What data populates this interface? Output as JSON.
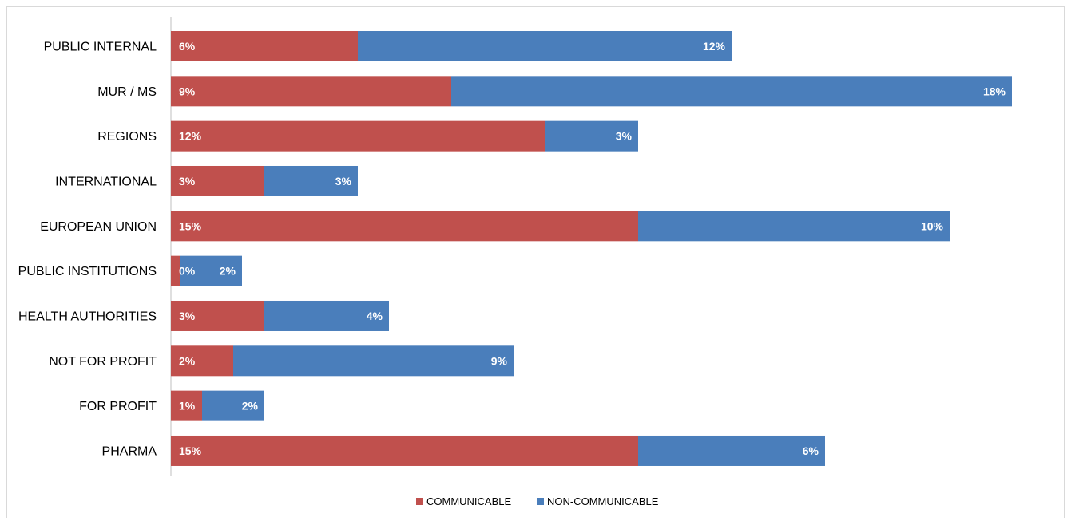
{
  "chart_data": {
    "type": "bar",
    "orientation": "horizontal",
    "stacked": true,
    "categories": [
      "PUBLIC INTERNAL",
      "MUR / MS",
      "REGIONS",
      "INTERNATIONAL",
      "EUROPEAN UNION",
      "PUBLIC INSTITUTIONS",
      "HEALTH AUTHORITIES",
      "NOT FOR PROFIT",
      "FOR PROFIT",
      "PHARMA"
    ],
    "series": [
      {
        "name": "COMMUNICABLE",
        "color": "#c0504d",
        "values": [
          6,
          9,
          12,
          3,
          15,
          0,
          3,
          2,
          1,
          15
        ],
        "labels": [
          "6%",
          "9%",
          "12%",
          "3%",
          "15%",
          "0%",
          "3%",
          "2%",
          "1%",
          "15%"
        ]
      },
      {
        "name": "NON-COMMUNICABLE",
        "color": "#4a7ebb",
        "values": [
          12,
          18,
          3,
          3,
          10,
          2,
          4,
          9,
          2,
          6
        ],
        "labels": [
          "12%",
          "18%",
          "3%",
          "3%",
          "10%",
          "2%",
          "4%",
          "9%",
          "2%",
          "6%"
        ]
      }
    ],
    "title": "",
    "xlabel": "",
    "ylabel": "",
    "grid": false,
    "legend_position": "bottom"
  }
}
